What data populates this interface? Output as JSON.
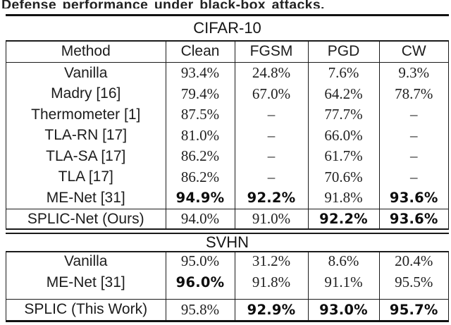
{
  "caption": "Defense performance under black-box attacks.",
  "colors": {
    "text": "#1f1f1f",
    "line": "#1a1a1a",
    "background": "#ffffff"
  },
  "header": {
    "columns": [
      "Method",
      "Clean",
      "FGSM",
      "PGD",
      "CW"
    ]
  },
  "sections": [
    {
      "title": "CIFAR-10",
      "rows": [
        {
          "method": "Vanilla",
          "cells": [
            {
              "text": "93.4%",
              "bold": false
            },
            {
              "text": "24.8%",
              "bold": false
            },
            {
              "text": "7.6%",
              "bold": false
            },
            {
              "text": "9.3%",
              "bold": false
            }
          ]
        },
        {
          "method": "Madry [16]",
          "cells": [
            {
              "text": "79.4%",
              "bold": false
            },
            {
              "text": "67.0%",
              "bold": false
            },
            {
              "text": "64.2%",
              "bold": false
            },
            {
              "text": "78.7%",
              "bold": false
            }
          ]
        },
        {
          "method": "Thermometer [1]",
          "cells": [
            {
              "text": "87.5%",
              "bold": false
            },
            {
              "text": "–",
              "bold": false
            },
            {
              "text": "77.7%",
              "bold": false
            },
            {
              "text": "–",
              "bold": false
            }
          ]
        },
        {
          "method": "TLA-RN [17]",
          "cells": [
            {
              "text": "81.0%",
              "bold": false
            },
            {
              "text": "–",
              "bold": false
            },
            {
              "text": "66.0%",
              "bold": false
            },
            {
              "text": "–",
              "bold": false
            }
          ]
        },
        {
          "method": "TLA-SA [17]",
          "cells": [
            {
              "text": "86.2%",
              "bold": false
            },
            {
              "text": "–",
              "bold": false
            },
            {
              "text": "61.7%",
              "bold": false
            },
            {
              "text": "–",
              "bold": false
            }
          ]
        },
        {
          "method": "TLA [17]",
          "cells": [
            {
              "text": "86.2%",
              "bold": false
            },
            {
              "text": "–",
              "bold": false
            },
            {
              "text": "70.6%",
              "bold": false
            },
            {
              "text": "–",
              "bold": false
            }
          ]
        },
        {
          "method": "ME-Net [31]",
          "cells": [
            {
              "text": "94.9%",
              "bold": true
            },
            {
              "text": "92.2%",
              "bold": true
            },
            {
              "text": "91.8%",
              "bold": false
            },
            {
              "text": "93.6%",
              "bold": true
            }
          ]
        },
        {
          "method": "SPLIC-Net (Ours)",
          "cells": [
            {
              "text": "94.0%",
              "bold": false
            },
            {
              "text": "91.0%",
              "bold": false
            },
            {
              "text": "92.2%",
              "bold": true
            },
            {
              "text": "93.6%",
              "bold": true
            }
          ]
        }
      ]
    },
    {
      "title": "SVHN",
      "rows": [
        {
          "method": "Vanilla",
          "cells": [
            {
              "text": "95.0%",
              "bold": false
            },
            {
              "text": "31.2%",
              "bold": false
            },
            {
              "text": "8.6%",
              "bold": false
            },
            {
              "text": "20.4%",
              "bold": false
            }
          ]
        },
        {
          "method": "ME-Net [31]",
          "cells": [
            {
              "text": "96.0%",
              "bold": true
            },
            {
              "text": "91.8%",
              "bold": false
            },
            {
              "text": "91.1%",
              "bold": false
            },
            {
              "text": "95.5%",
              "bold": false
            }
          ]
        },
        {
          "method": "SPLIC (This Work)",
          "cells": [
            {
              "text": "95.8%",
              "bold": false
            },
            {
              "text": "92.9%",
              "bold": true
            },
            {
              "text": "93.0%",
              "bold": true
            },
            {
              "text": "95.7%",
              "bold": true
            }
          ]
        }
      ]
    }
  ]
}
